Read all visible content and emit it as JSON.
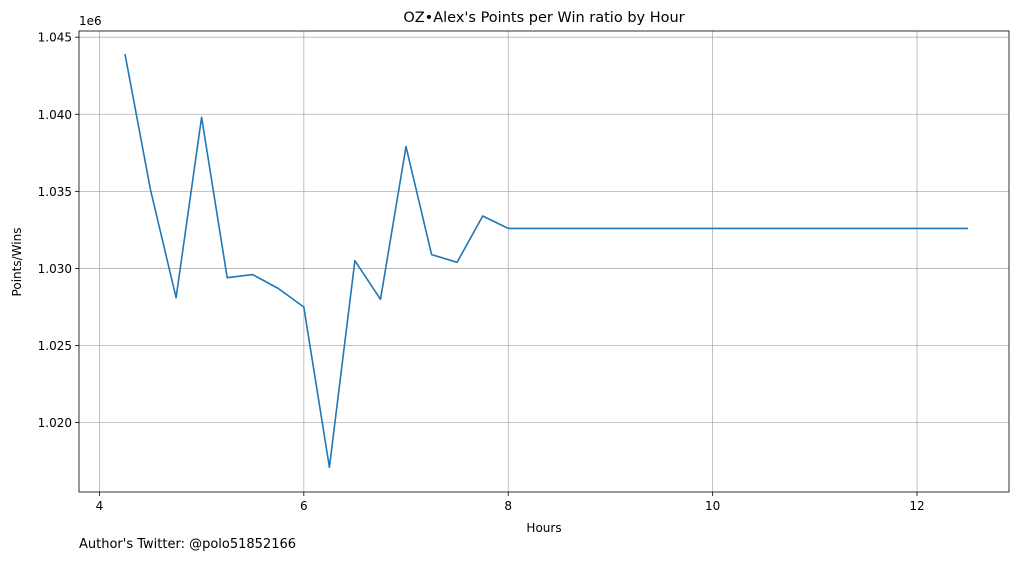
{
  "chart_data": {
    "type": "line",
    "title": "OZ•Alex's Points per Win ratio by Hour",
    "xlabel": "Hours",
    "ylabel": "Points/Wins",
    "y_offset_label": "1e6",
    "xlim": [
      3.8,
      12.9
    ],
    "ylim": [
      1.0155,
      1.0454
    ],
    "x_ticks": [
      4,
      6,
      8,
      10,
      12
    ],
    "x_tick_labels": [
      "4",
      "6",
      "8",
      "10",
      "12"
    ],
    "y_ticks": [
      1.02,
      1.025,
      1.03,
      1.035,
      1.04,
      1.045
    ],
    "y_tick_labels": [
      "1.020",
      "1.025",
      "1.030",
      "1.035",
      "1.040",
      "1.045"
    ],
    "grid": true,
    "color": "#1f77b4",
    "series": [
      {
        "x": [
          4.25,
          4.5,
          4.75,
          5.0,
          5.25,
          5.5,
          5.75,
          6.0,
          6.25,
          6.5,
          6.75,
          7.0,
          7.25,
          7.5,
          7.75,
          8.0,
          8.25,
          8.5,
          8.75,
          9.0,
          9.25,
          9.5,
          9.75,
          10.0,
          10.25,
          10.5,
          10.75,
          11.0,
          11.25,
          11.5,
          11.75,
          12.0,
          12.25,
          12.5
        ],
        "y": [
          1.0439,
          1.0351,
          1.0281,
          1.0398,
          1.0294,
          1.0296,
          1.0287,
          1.0275,
          1.0171,
          1.0305,
          1.028,
          1.0379,
          1.0309,
          1.0304,
          1.0334,
          1.0326,
          1.0326,
          1.0326,
          1.0326,
          1.0326,
          1.0326,
          1.0326,
          1.0326,
          1.0326,
          1.0326,
          1.0326,
          1.0326,
          1.0326,
          1.0326,
          1.0326,
          1.0326,
          1.0326,
          1.0326,
          1.0326
        ]
      }
    ]
  },
  "footer": {
    "text": "Author's Twitter: @polo51852166"
  }
}
